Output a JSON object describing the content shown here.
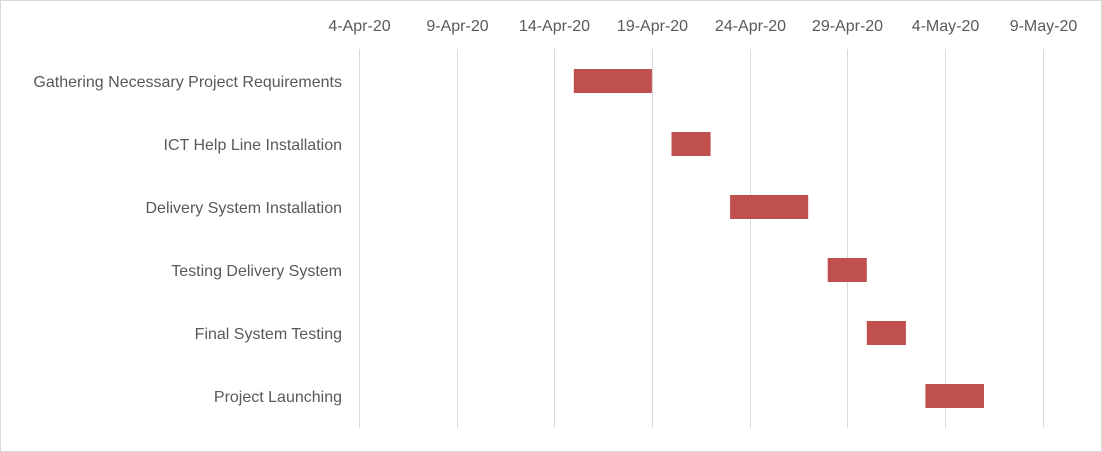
{
  "chart_data": {
    "type": "bar",
    "orientation": "horizontal",
    "subtype": "gantt",
    "title": "",
    "xlabel": "",
    "ylabel": "",
    "x_axis_position": "top",
    "xlim": [
      "2020-04-04",
      "2020-05-11"
    ],
    "x_tick_labels": [
      "4-Apr-20",
      "9-Apr-20",
      "14-Apr-20",
      "19-Apr-20",
      "24-Apr-20",
      "29-Apr-20",
      "4-May-20",
      "9-May-20"
    ],
    "x_ticks": [
      "2020-04-04",
      "2020-04-09",
      "2020-04-14",
      "2020-04-19",
      "2020-04-24",
      "2020-04-29",
      "2020-05-04",
      "2020-05-09"
    ],
    "grid": true,
    "legend": "none",
    "bar_color": "#c0504d",
    "tasks": [
      {
        "name": "Gathering Necessary Project Requirements",
        "start": "2020-04-15",
        "end": "2020-04-19"
      },
      {
        "name": "ICT Help Line Installation",
        "start": "2020-04-20",
        "end": "2020-04-22"
      },
      {
        "name": "Delivery System Installation",
        "start": "2020-04-23",
        "end": "2020-04-27"
      },
      {
        "name": "Testing Delivery System",
        "start": "2020-04-28",
        "end": "2020-04-30"
      },
      {
        "name": "Final System Testing",
        "start": "2020-04-30",
        "end": "2020-05-02"
      },
      {
        "name": "Project Launching",
        "start": "2020-05-03",
        "end": "2020-05-06"
      }
    ]
  }
}
